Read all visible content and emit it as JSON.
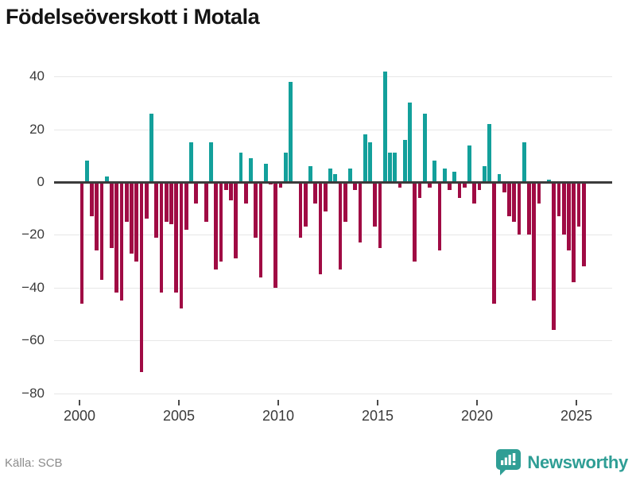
{
  "title": "Födelseöverskott i Motala",
  "footer": {
    "source": "Källa: SCB",
    "brand": "Newsworthy"
  },
  "colors": {
    "positive": "#13a09b",
    "negative": "#a00b44",
    "zero_axis": "#3b3b3b",
    "grid": "#e7e7e7",
    "axis_label": "#3a3a3a",
    "source_text": "#8c8c8c",
    "brand_teal": "#2f9e95"
  },
  "chart_data": {
    "type": "bar",
    "title": "Födelseöverskott i Motala",
    "x_unit": "quarter",
    "start_period": "2000 Q1",
    "end_period": "2025 Q2",
    "x_tick_labels": [
      "2000",
      "2005",
      "2010",
      "2015",
      "2020",
      "2025"
    ],
    "y_tick_labels": [
      "40",
      "20",
      "0",
      "−20",
      "−40",
      "−60",
      "−80"
    ],
    "y_ticks": [
      40,
      20,
      0,
      -20,
      -40,
      -60,
      -80
    ],
    "ylim": [
      -80,
      45
    ],
    "grid": "horizontal",
    "legend": "none",
    "values": [
      -46,
      8,
      -13,
      -26,
      -37,
      2,
      -25,
      -42,
      -45,
      -15,
      -27,
      -30,
      -72,
      -14,
      26,
      -21,
      -42,
      -15,
      -16,
      -42,
      -48,
      -18,
      15,
      -8,
      0,
      -15,
      15,
      -33,
      -30,
      -3,
      -7,
      -29,
      11,
      -8,
      9,
      -21,
      -36,
      7,
      -1,
      -40,
      -2,
      11,
      38,
      0,
      -21,
      -17,
      6,
      -8,
      -35,
      -11,
      5,
      3,
      -33,
      -15,
      5,
      -3,
      -23,
      18,
      15,
      -17,
      -25,
      42,
      11,
      11,
      -2,
      16,
      30,
      -30,
      -6,
      26,
      -2,
      8,
      -26,
      5,
      -3,
      4,
      -6,
      -2,
      14,
      -8,
      -3,
      6,
      22,
      -46,
      3,
      -4,
      -13,
      -15,
      -20,
      15,
      -20,
      -45,
      -8,
      0,
      1,
      -56,
      -13,
      -20,
      -26,
      -38,
      -17,
      -32
    ]
  }
}
